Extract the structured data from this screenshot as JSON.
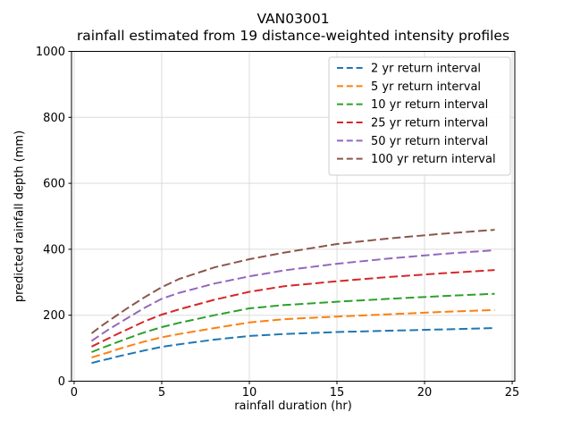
{
  "title": {
    "line1": "VAN03001",
    "line2": "rainfall estimated from 19 distance-weighted intensity profiles"
  },
  "chart_data": {
    "type": "line",
    "title": "VAN03001",
    "subtitle": "rainfall estimated from 19 distance-weighted intensity profiles",
    "xlabel": "rainfall duration (hr)",
    "ylabel": "predicted rainfall depth (mm)",
    "xlim": [
      0,
      25
    ],
    "ylim": [
      0,
      1000
    ],
    "x_ticks": [
      0,
      5,
      10,
      15,
      20,
      25
    ],
    "y_ticks": [
      0,
      200,
      400,
      600,
      800,
      1000
    ],
    "grid": true,
    "line_style": "dashed",
    "legend_position": "upper right",
    "colors": {
      "grid": "#dcdcdc",
      "spine": "#000000",
      "tick": "#000000",
      "legend_border": "#cccccc",
      "legend_bg": "#ffffff"
    },
    "x": [
      1,
      1.5,
      2,
      2.5,
      3,
      4,
      5,
      6,
      8,
      10,
      12,
      15,
      18,
      21,
      24
    ],
    "series": [
      {
        "name": "2 yr return interval",
        "color": "#1f77b4",
        "values": [
          55,
          62,
          68,
          75,
          81,
          93,
          104,
          112,
          126,
          137,
          143,
          149,
          153,
          157,
          161
        ]
      },
      {
        "name": "5 yr return interval",
        "color": "#ff7f0e",
        "values": [
          72,
          80,
          88,
          97,
          105,
          120,
          133,
          143,
          161,
          178,
          188,
          196,
          203,
          210,
          216
        ]
      },
      {
        "name": "10 yr return interval",
        "color": "#2ca02c",
        "values": [
          88,
          99,
          109,
          119,
          129,
          148,
          164,
          177,
          200,
          221,
          231,
          241,
          250,
          258,
          265
        ]
      },
      {
        "name": "25 yr return interval",
        "color": "#d62728",
        "values": [
          105,
          118,
          131,
          144,
          156,
          181,
          202,
          218,
          247,
          271,
          288,
          303,
          316,
          327,
          337
        ]
      },
      {
        "name": "50 yr return interval",
        "color": "#9467bd",
        "values": [
          122,
          140,
          158,
          174,
          190,
          222,
          250,
          268,
          296,
          318,
          336,
          356,
          372,
          386,
          397
        ]
      },
      {
        "name": "100 yr return interval",
        "color": "#8c564b",
        "values": [
          145,
          165,
          184,
          202,
          220,
          254,
          285,
          310,
          345,
          370,
          390,
          416,
          433,
          447,
          459
        ]
      }
    ]
  }
}
